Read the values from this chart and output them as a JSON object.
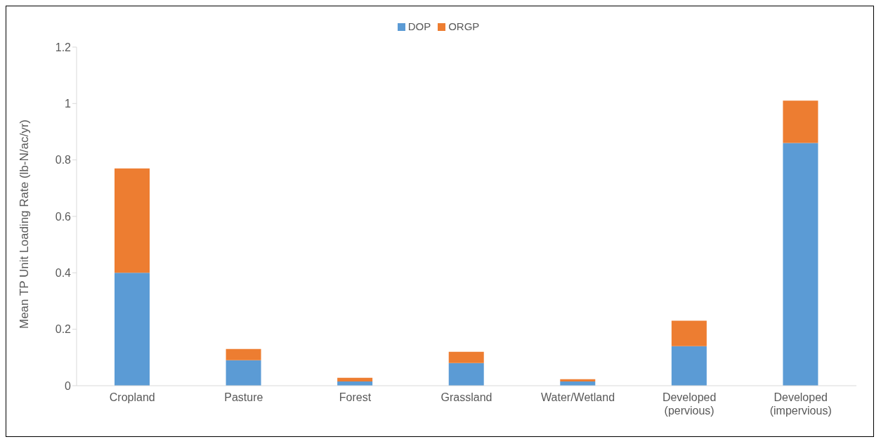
{
  "chart_data": {
    "type": "bar",
    "stacked": true,
    "ylabel": "Mean TP Unit Loading Rate (lb-N/ac/yr)",
    "categories": [
      "Cropland",
      "Pasture",
      "Forest",
      "Grassland",
      "Water/Wetland",
      "Developed\n(pervious)",
      "Developed\n(impervious)"
    ],
    "series": [
      {
        "name": "DOP",
        "color": "#5b9bd5",
        "values": [
          0.4,
          0.09,
          0.015,
          0.08,
          0.015,
          0.14,
          0.86
        ]
      },
      {
        "name": "ORGP",
        "color": "#ed7d31",
        "values": [
          0.37,
          0.04,
          0.013,
          0.04,
          0.008,
          0.09,
          0.15
        ]
      }
    ],
    "ylim": [
      0,
      1.2
    ],
    "yticks": [
      0,
      0.2,
      0.4,
      0.6,
      0.8,
      1,
      1.2
    ],
    "grid": false,
    "legend": "top"
  }
}
